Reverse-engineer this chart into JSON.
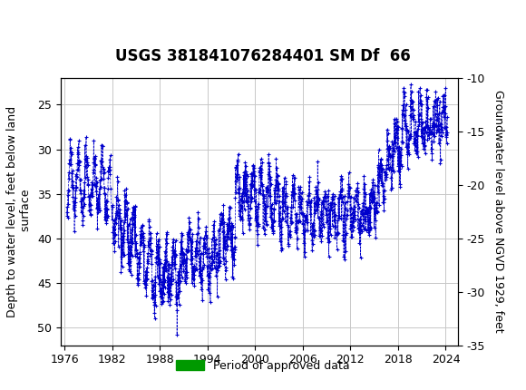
{
  "title": "USGS 381841076284401 SM Df  66",
  "ylabel_left": "Depth to water level, feet below land\n surface",
  "ylabel_right": "Groundwater level above NGVD 1929, feet",
  "ylim_left": [
    52,
    22
  ],
  "ylim_right": [
    -35,
    -10
  ],
  "yticks_left": [
    25,
    30,
    35,
    40,
    45,
    50
  ],
  "yticks_right": [
    -10,
    -15,
    -20,
    -25,
    -30,
    -35
  ],
  "xticks": [
    1976,
    1982,
    1988,
    1994,
    2000,
    2006,
    2012,
    2018,
    2024
  ],
  "xlim": [
    1975.5,
    2025.5
  ],
  "data_color": "#0000CC",
  "bar_color": "#009900",
  "header_bg": "#1a7040",
  "legend_label": "Period of approved data",
  "background_color": "#ffffff",
  "grid_color": "#c8c8c8",
  "title_fontsize": 12,
  "axis_fontsize": 9,
  "tick_fontsize": 9
}
